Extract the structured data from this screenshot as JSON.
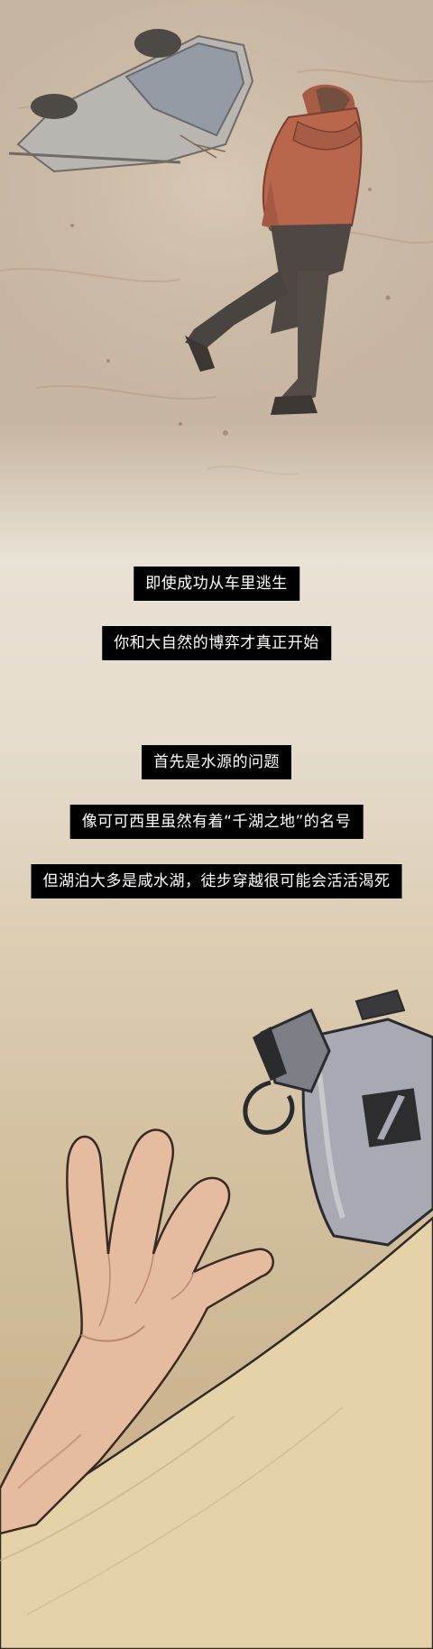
{
  "captions": {
    "line1": "即使成功从车里逃生",
    "line2": "你和大自然的博弈才真正开始",
    "line3": "首先是水源的问题",
    "line4": "像可可西里虽然有着“千湖之地”的名号",
    "line5": "但湖泊大多是咸水湖，徒步穿越很可能会活活渴死"
  },
  "colors": {
    "caption_bg": "#000000",
    "caption_text": "#ffffff",
    "jacket": "#b8664c",
    "sand": "#e6d2a8",
    "bottle": "#a8a9b2"
  },
  "illustrations": {
    "top_scene_icons": [
      "overturned-car-icon",
      "person-in-sandstorm-icon"
    ],
    "bottom_scene_icons": [
      "reaching-hand-icon",
      "water-bottle-icon",
      "sand-dune-icon"
    ]
  }
}
